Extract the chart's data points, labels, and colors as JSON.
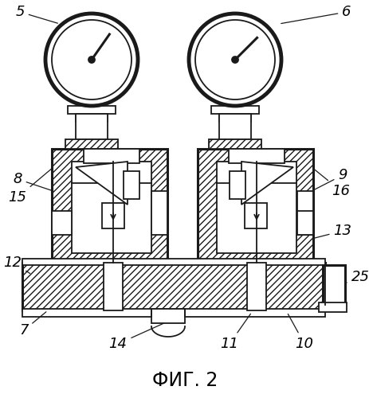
{
  "title": "ФИГ. 2",
  "title_fontsize": 17,
  "background_color": "#ffffff",
  "line_color": "#1a1a1a",
  "label_fontsize": 13,
  "lw": 1.3,
  "lw_thick": 2.2,
  "lw_gauge": 3.5
}
